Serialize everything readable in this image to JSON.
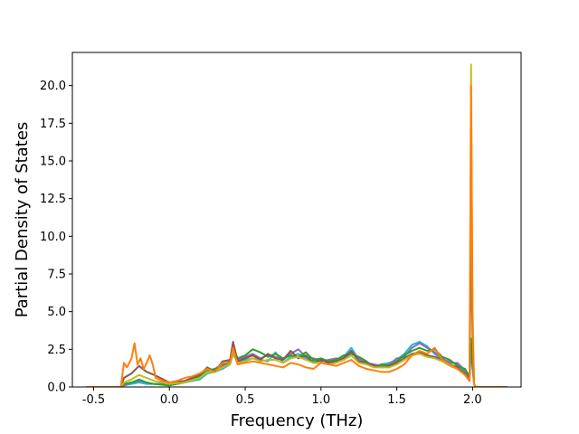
{
  "chart_data": {
    "type": "line",
    "title": "",
    "xlabel": "Frequency (THz)",
    "ylabel": "Partial Density of States",
    "xlim": [
      -0.64,
      2.32
    ],
    "ylim": [
      0,
      22.2
    ],
    "xticks": [
      "-0.5",
      "0.0",
      "0.5",
      "1.0",
      "1.5",
      "2.0"
    ],
    "yticks": [
      "0.0",
      "2.5",
      "5.0",
      "7.5",
      "10.0",
      "12.5",
      "15.0",
      "17.5",
      "20.0",
      "22.5"
    ],
    "grid": false,
    "legend": "none",
    "series_colors": [
      "#1f77b4",
      "#ff7f0e",
      "#2ca02c",
      "#d62728",
      "#9467bd",
      "#8c564b",
      "#e377c2",
      "#7f7f7f",
      "#bcbd22",
      "#17becf"
    ],
    "series": [
      {
        "color": "#17becf",
        "x": [
          -0.55,
          -0.32,
          -0.3,
          -0.25,
          -0.2,
          -0.15,
          -0.1,
          0.0,
          0.1,
          0.2,
          0.25,
          0.3,
          0.35,
          0.4,
          0.42,
          0.45,
          0.5,
          0.55,
          0.6,
          0.65,
          0.7,
          0.75,
          0.8,
          0.85,
          0.9,
          0.95,
          1.0,
          1.05,
          1.1,
          1.15,
          1.2,
          1.25,
          1.3,
          1.35,
          1.4,
          1.45,
          1.5,
          1.55,
          1.6,
          1.65,
          1.7,
          1.75,
          1.8,
          1.85,
          1.9,
          1.95,
          1.98,
          1.99,
          2.0,
          2.01,
          2.02,
          2.05,
          2.1,
          2.23
        ],
        "y": [
          0,
          0,
          0.1,
          0.2,
          0.3,
          0.2,
          0.2,
          0.2,
          0.3,
          0.5,
          0.9,
          1.0,
          1.2,
          1.5,
          2.2,
          1.6,
          1.8,
          1.9,
          1.8,
          1.7,
          2.3,
          1.6,
          2.0,
          2.2,
          1.9,
          1.7,
          1.8,
          1.6,
          1.7,
          2.0,
          2.6,
          1.8,
          1.5,
          1.4,
          1.5,
          1.6,
          1.8,
          2.2,
          2.8,
          3.0,
          2.7,
          2.2,
          1.8,
          1.7,
          1.5,
          1.0,
          0.5,
          2.5,
          1.5,
          0.2,
          0,
          0,
          0,
          0
        ]
      },
      {
        "color": "#9467bd",
        "x": [
          -0.55,
          -0.32,
          -0.3,
          -0.25,
          -0.2,
          -0.15,
          -0.1,
          0.0,
          0.1,
          0.2,
          0.25,
          0.3,
          0.35,
          0.4,
          0.42,
          0.45,
          0.5,
          0.55,
          0.6,
          0.65,
          0.7,
          0.75,
          0.8,
          0.85,
          0.9,
          0.95,
          1.0,
          1.05,
          1.1,
          1.15,
          1.2,
          1.25,
          1.3,
          1.35,
          1.4,
          1.45,
          1.5,
          1.55,
          1.6,
          1.65,
          1.7,
          1.75,
          1.8,
          1.85,
          1.9,
          1.95,
          1.98,
          1.99,
          2.0,
          2.01,
          2.02,
          2.05,
          2.1,
          2.23
        ],
        "y": [
          0,
          0,
          0.1,
          0.3,
          0.4,
          0.3,
          0.2,
          0.2,
          0.3,
          0.6,
          1.0,
          1.1,
          1.4,
          1.6,
          2.4,
          1.8,
          2.0,
          2.2,
          1.9,
          2.1,
          2.0,
          1.8,
          2.2,
          2.5,
          2.0,
          1.9,
          1.7,
          1.8,
          1.9,
          1.8,
          2.3,
          1.9,
          1.6,
          1.5,
          1.4,
          1.5,
          1.9,
          2.0,
          2.6,
          2.9,
          2.6,
          2.3,
          1.9,
          1.6,
          1.6,
          1.1,
          0.6,
          3.0,
          1.2,
          0.2,
          0,
          0,
          0,
          0
        ]
      },
      {
        "color": "#2ca02c",
        "x": [
          -0.55,
          -0.32,
          -0.3,
          -0.25,
          -0.2,
          -0.15,
          -0.1,
          0.0,
          0.1,
          0.2,
          0.25,
          0.3,
          0.35,
          0.4,
          0.42,
          0.45,
          0.5,
          0.55,
          0.6,
          0.65,
          0.7,
          0.75,
          0.8,
          0.85,
          0.9,
          0.95,
          1.0,
          1.05,
          1.1,
          1.15,
          1.2,
          1.25,
          1.3,
          1.35,
          1.4,
          1.45,
          1.5,
          1.55,
          1.6,
          1.65,
          1.7,
          1.75,
          1.8,
          1.85,
          1.9,
          1.95,
          1.98,
          1.99,
          2.0,
          2.01,
          2.02,
          2.05,
          2.1,
          2.23
        ],
        "y": [
          0,
          0,
          0.2,
          0.3,
          0.5,
          0.3,
          0.2,
          0.1,
          0.3,
          0.7,
          1.1,
          1.2,
          1.5,
          1.7,
          2.6,
          1.9,
          2.1,
          2.5,
          2.3,
          2.0,
          2.2,
          1.9,
          2.1,
          2.0,
          2.3,
          1.8,
          1.9,
          1.7,
          1.8,
          2.1,
          2.2,
          2.0,
          1.7,
          1.3,
          1.5,
          1.4,
          1.7,
          2.1,
          2.4,
          2.6,
          2.4,
          2.5,
          2.0,
          1.8,
          1.4,
          1.2,
          0.7,
          3.2,
          1.6,
          0.2,
          0,
          0,
          0,
          0
        ]
      },
      {
        "color": "#8c564b",
        "x": [
          -0.55,
          -0.32,
          -0.3,
          -0.25,
          -0.2,
          -0.15,
          -0.1,
          0.0,
          0.1,
          0.2,
          0.25,
          0.3,
          0.35,
          0.4,
          0.42,
          0.45,
          0.5,
          0.55,
          0.6,
          0.65,
          0.7,
          0.75,
          0.8,
          0.85,
          0.9,
          0.95,
          1.0,
          1.05,
          1.1,
          1.15,
          1.2,
          1.25,
          1.3,
          1.35,
          1.4,
          1.45,
          1.5,
          1.55,
          1.6,
          1.65,
          1.7,
          1.75,
          1.8,
          1.85,
          1.9,
          1.95,
          1.98,
          1.99,
          2.0,
          2.01,
          2.02,
          2.05,
          2.1,
          2.23
        ],
        "y": [
          0,
          0,
          0.6,
          0.9,
          1.4,
          1.0,
          0.8,
          0.3,
          0.4,
          0.8,
          1.3,
          1.0,
          1.7,
          1.8,
          3.0,
          1.7,
          1.9,
          2.1,
          1.8,
          2.2,
          1.9,
          1.8,
          2.4,
          1.9,
          2.1,
          1.6,
          1.8,
          1.6,
          1.7,
          1.9,
          2.4,
          1.7,
          1.6,
          1.4,
          1.3,
          1.4,
          1.6,
          1.9,
          2.2,
          2.3,
          2.1,
          2.0,
          1.8,
          1.5,
          1.3,
          0.9,
          0.5,
          10.0,
          3.0,
          0.2,
          0,
          0,
          0,
          0
        ]
      },
      {
        "color": "#bcbd22",
        "x": [
          -0.55,
          -0.32,
          -0.3,
          -0.25,
          -0.2,
          -0.15,
          -0.1,
          0.0,
          0.1,
          0.2,
          0.25,
          0.3,
          0.35,
          0.4,
          0.42,
          0.45,
          0.5,
          0.55,
          0.6,
          0.65,
          0.7,
          0.75,
          0.8,
          0.85,
          0.9,
          0.95,
          1.0,
          1.05,
          1.1,
          1.15,
          1.2,
          1.25,
          1.3,
          1.35,
          1.4,
          1.45,
          1.5,
          1.55,
          1.6,
          1.65,
          1.7,
          1.75,
          1.8,
          1.85,
          1.9,
          1.95,
          1.98,
          1.99,
          2.0,
          2.01,
          2.02,
          2.05,
          2.1,
          2.23
        ],
        "y": [
          0,
          0,
          0.3,
          0.5,
          0.8,
          0.6,
          0.4,
          0.2,
          0.3,
          0.6,
          1.0,
          1.0,
          1.3,
          1.5,
          2.3,
          1.6,
          1.7,
          1.9,
          1.7,
          1.8,
          1.8,
          1.6,
          1.9,
          2.0,
          1.8,
          1.6,
          1.6,
          1.5,
          1.6,
          1.8,
          2.1,
          1.6,
          1.5,
          1.3,
          1.3,
          1.3,
          1.5,
          1.8,
          2.1,
          2.2,
          2.0,
          1.9,
          1.7,
          1.4,
          1.2,
          0.8,
          0.4,
          21.4,
          4.0,
          0.2,
          0,
          0,
          0,
          0
        ]
      },
      {
        "color": "#ff7f0e",
        "x": [
          -0.55,
          -0.32,
          -0.3,
          -0.28,
          -0.25,
          -0.23,
          -0.21,
          -0.19,
          -0.17,
          -0.15,
          -0.13,
          -0.11,
          -0.09,
          -0.05,
          0.0,
          0.05,
          0.1,
          0.15,
          0.2,
          0.25,
          0.3,
          0.35,
          0.4,
          0.42,
          0.45,
          0.5,
          0.55,
          0.6,
          0.65,
          0.7,
          0.75,
          0.8,
          0.85,
          0.9,
          0.95,
          1.0,
          1.05,
          1.1,
          1.15,
          1.2,
          1.25,
          1.3,
          1.35,
          1.4,
          1.45,
          1.5,
          1.55,
          1.6,
          1.65,
          1.7,
          1.75,
          1.8,
          1.85,
          1.9,
          1.95,
          1.98,
          1.99,
          2.0,
          2.01,
          2.02,
          2.05,
          2.1,
          2.23
        ],
        "y": [
          0,
          0,
          1.6,
          1.3,
          1.9,
          2.9,
          1.5,
          1.9,
          1.2,
          1.6,
          2.1,
          1.5,
          0.6,
          0.4,
          0.3,
          0.4,
          0.6,
          0.7,
          0.9,
          1.2,
          1.0,
          1.6,
          1.6,
          2.6,
          1.5,
          1.6,
          1.7,
          1.6,
          1.5,
          1.4,
          1.3,
          1.6,
          1.5,
          1.3,
          1.2,
          1.6,
          1.5,
          1.4,
          1.6,
          1.8,
          1.4,
          1.2,
          1.1,
          1.0,
          1.0,
          1.2,
          1.5,
          2.1,
          2.4,
          2.2,
          2.6,
          1.8,
          1.5,
          1.2,
          0.8,
          0.4,
          20.0,
          5.0,
          0.2,
          0,
          0,
          0,
          0
        ]
      }
    ]
  }
}
